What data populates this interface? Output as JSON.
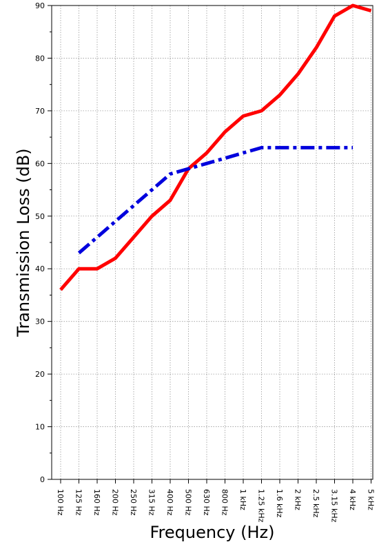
{
  "chart_data": {
    "type": "line",
    "title": "",
    "xlabel": "Frequency (Hz)",
    "ylabel": "Transmission Loss (dB)",
    "ylim": [
      0,
      90
    ],
    "yticks": [
      "0",
      "10",
      "20",
      "30",
      "40",
      "50",
      "60",
      "70",
      "80",
      "90"
    ],
    "categories": [
      "100 Hz",
      "125 Hz",
      "160 Hz",
      "200 Hz",
      "250 Hz",
      "315 Hz",
      "400 Hz",
      "500 Hz",
      "630 Hz",
      "800 Hz",
      "1 kHz",
      "1.25 kHz",
      "1.6 kHz",
      "2 kHz",
      "2.5 kHz",
      "3.15 kHz",
      "4 kHz",
      "5 kHz"
    ],
    "grid": true,
    "series": [
      {
        "color": "#ff0000",
        "style": "solid",
        "values": [
          36,
          40,
          40,
          42,
          46,
          50,
          53,
          59,
          62,
          66,
          69,
          70,
          73,
          77,
          82,
          88,
          90,
          89
        ]
      },
      {
        "color": "#0000dd",
        "style": "dash-dot",
        "values": [
          null,
          43,
          46,
          49,
          52,
          55,
          58,
          59,
          60,
          61,
          62,
          63,
          63,
          63,
          63,
          63,
          63,
          null
        ]
      }
    ]
  }
}
